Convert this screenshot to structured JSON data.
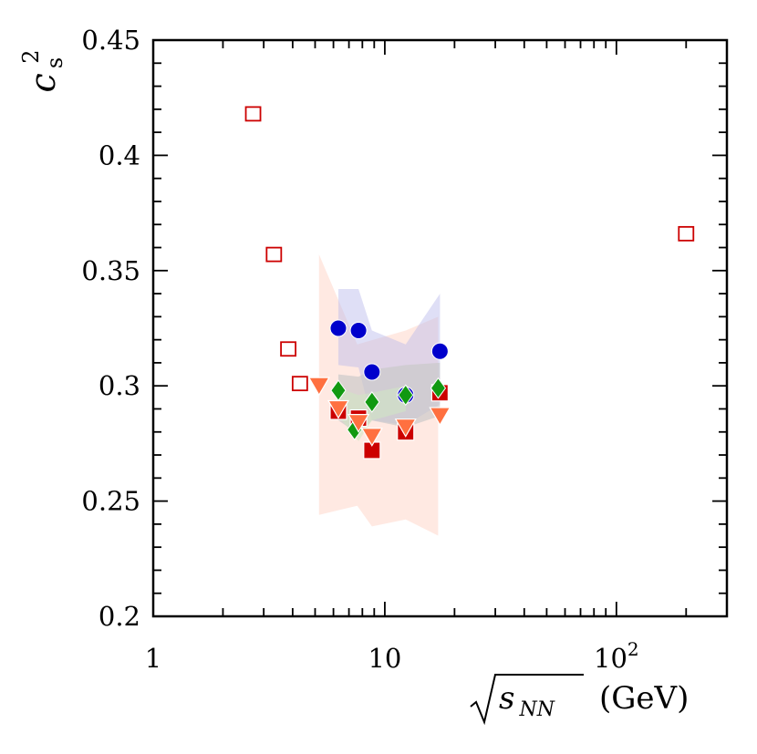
{
  "chart_data": {
    "type": "scatter",
    "xscale": "log",
    "xlim": [
      1,
      300
    ],
    "ylim": [
      0.2,
      0.45
    ],
    "xlabel": "√s_NN (GeV)",
    "ylabel": "c_s^2",
    "ylabel_base": "c",
    "ylabel_sub": "s",
    "ylabel_sup": "2",
    "xlabel_rad": "s",
    "xlabel_sub": "NN",
    "xlabel_unit": "(GeV)",
    "x_ticks": [
      {
        "value": 1,
        "label": "1"
      },
      {
        "value": 10,
        "label": "10"
      },
      {
        "value": 100,
        "label": "10",
        "sup": "2"
      }
    ],
    "y_ticks": [
      {
        "value": 0.2,
        "label": "0.2"
      },
      {
        "value": 0.25,
        "label": "0.25"
      },
      {
        "value": 0.3,
        "label": "0.3"
      },
      {
        "value": 0.35,
        "label": "0.35"
      },
      {
        "value": 0.4,
        "label": "0.4"
      },
      {
        "value": 0.45,
        "label": "0.45"
      }
    ],
    "grid": false,
    "bands": [
      {
        "color": "#ffe2d8",
        "opacity": 0.75,
        "upper": [
          [
            5.2,
            0.357
          ],
          [
            7.6,
            0.318
          ],
          [
            12.3,
            0.324
          ],
          [
            17.0,
            0.33
          ]
        ],
        "lower": [
          [
            5.2,
            0.244
          ],
          [
            7.6,
            0.248
          ],
          [
            8.8,
            0.239
          ],
          [
            12.3,
            0.242
          ],
          [
            17.0,
            0.235
          ]
        ]
      },
      {
        "color": "#b9b9ea",
        "opacity": 0.45,
        "upper": [
          [
            6.3,
            0.342
          ],
          [
            7.7,
            0.342
          ],
          [
            8.8,
            0.324
          ],
          [
            12.3,
            0.318
          ],
          [
            17.3,
            0.34
          ]
        ],
        "lower": [
          [
            6.3,
            0.309
          ],
          [
            7.7,
            0.308
          ],
          [
            8.8,
            0.285
          ],
          [
            12.3,
            0.283
          ],
          [
            17.3,
            0.292
          ]
        ]
      },
      {
        "color": "#c8c8c8",
        "opacity": 0.65,
        "upper": [
          [
            6.3,
            0.305
          ],
          [
            7.7,
            0.304
          ],
          [
            8.8,
            0.307
          ],
          [
            12.3,
            0.309
          ],
          [
            17.3,
            0.31
          ]
        ],
        "lower": [
          [
            6.3,
            0.285
          ],
          [
            7.7,
            0.279
          ],
          [
            8.8,
            0.285
          ],
          [
            12.3,
            0.282
          ],
          [
            17.3,
            0.287
          ]
        ]
      },
      {
        "color": "#cfe8c2",
        "opacity": 0.55,
        "upper": [
          [
            6.3,
            0.299
          ],
          [
            7.7,
            0.296
          ],
          [
            8.8,
            0.297
          ],
          [
            12.3,
            0.3
          ]
        ],
        "lower": [
          [
            6.3,
            0.287
          ],
          [
            7.7,
            0.276
          ],
          [
            8.8,
            0.285
          ],
          [
            12.3,
            0.289
          ]
        ]
      }
    ],
    "series": [
      {
        "marker": "open-square",
        "color": "#cc0000",
        "x": [
          2.7,
          3.32,
          3.83,
          4.3,
          200
        ],
        "y": [
          0.418,
          0.357,
          0.316,
          0.301,
          0.366
        ]
      },
      {
        "marker": "filled-square",
        "color": "#cc0000",
        "x": [
          6.3,
          7.7,
          8.8,
          12.3,
          17.3
        ],
        "y": [
          0.289,
          0.286,
          0.272,
          0.28,
          0.297
        ]
      },
      {
        "marker": "filled-circle",
        "color": "#0000cc",
        "x": [
          6.3,
          7.7,
          8.8,
          12.3,
          17.3
        ],
        "y": [
          0.325,
          0.324,
          0.306,
          0.296,
          0.315
        ]
      },
      {
        "marker": "filled-diamond",
        "color": "#119911",
        "x": [
          6.3,
          7.4,
          8.8,
          12.3,
          17.0
        ],
        "y": [
          0.298,
          0.281,
          0.293,
          0.296,
          0.299
        ]
      },
      {
        "marker": "filled-triangle-down",
        "color": "#ff7040",
        "x": [
          5.2,
          6.3,
          7.7,
          8.8,
          12.3,
          17.3
        ],
        "y": [
          0.3,
          0.29,
          0.284,
          0.278,
          0.282,
          0.287
        ]
      }
    ]
  }
}
